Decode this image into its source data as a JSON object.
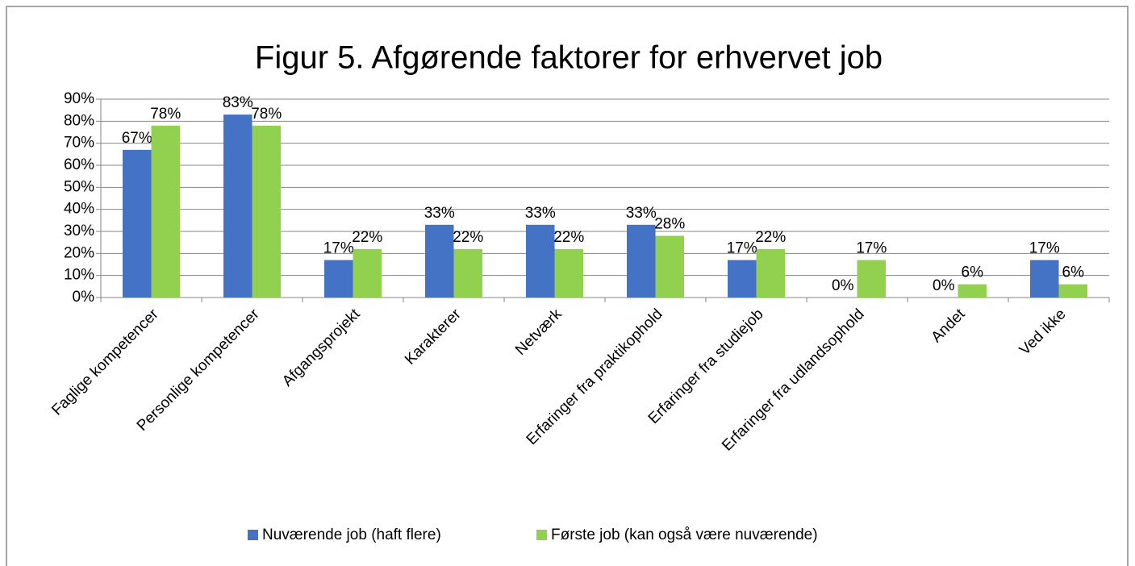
{
  "chart_data": {
    "type": "bar",
    "title": "Figur 5. Afgørende faktorer for erhvervet job",
    "categories": [
      "Faglige kompetencer",
      "Personlige kompetencer",
      "Afgangsprojekt",
      "Karakterer",
      "Netværk",
      "Erfaringer fra praktikophold",
      "Erfaringer fra studiejob",
      "Erfaringer fra udlandsophold",
      "Andet",
      "Ved ikke"
    ],
    "series": [
      {
        "name": "Nuværende job (haft flere)",
        "color": "#4472c4",
        "values": [
          67,
          83,
          17,
          33,
          33,
          33,
          17,
          0,
          0,
          17
        ],
        "value_labels": [
          "67%",
          "83%",
          "17%",
          "33%",
          "33%",
          "33%",
          "17%",
          "0%",
          "0%",
          "17%"
        ]
      },
      {
        "name": "Første job (kan også være nuværende)",
        "color": "#92d050",
        "values": [
          78,
          78,
          22,
          22,
          22,
          28,
          22,
          17,
          6,
          6
        ],
        "value_labels": [
          "78%",
          "78%",
          "22%",
          "22%",
          "22%",
          "28%",
          "22%",
          "17%",
          "6%",
          "6%"
        ]
      }
    ],
    "ylim": [
      0,
      90
    ],
    "yticks": [
      {
        "value": 0,
        "label": "0%"
      },
      {
        "value": 10,
        "label": "10%"
      },
      {
        "value": 20,
        "label": "20%"
      },
      {
        "value": 30,
        "label": "30%"
      },
      {
        "value": 40,
        "label": "40%"
      },
      {
        "value": 50,
        "label": "50%"
      },
      {
        "value": 60,
        "label": "60%"
      },
      {
        "value": 70,
        "label": "70%"
      },
      {
        "value": 80,
        "label": "80%"
      },
      {
        "value": 90,
        "label": "90%"
      }
    ],
    "grid": true,
    "legend": "bottom"
  }
}
